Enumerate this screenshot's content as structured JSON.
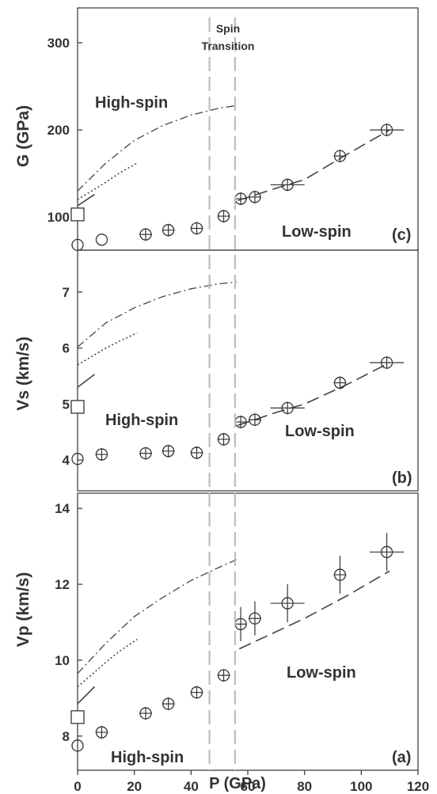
{
  "figure": {
    "spin_label_1": "Spin",
    "spin_label_2": "Transition",
    "xlabel": "P (GPa)",
    "x_ticks": [
      "0",
      "20",
      "40",
      "60",
      "80",
      "100",
      "120"
    ],
    "transition_pressures": [
      46.5,
      55.5
    ]
  },
  "chart_data": [
    {
      "type": "scatter",
      "panel_label": "(c)",
      "ylabel": "G (GPa)",
      "xlim": [
        0,
        120
      ],
      "ylim": [
        62,
        340
      ],
      "y_ticks": [
        100,
        200,
        300
      ],
      "annotations": {
        "high": "High-spin",
        "low": "Low-spin"
      },
      "high_spin_points": {
        "x": [
          0,
          8.5,
          24,
          32,
          42,
          51.5
        ],
        "y": [
          68,
          74,
          80,
          85,
          87,
          101
        ],
        "xerr": [
          0,
          0,
          0.8,
          0.8,
          0.8,
          0.8
        ],
        "yerr": [
          0,
          0,
          3,
          3,
          3,
          3
        ]
      },
      "low_spin_points": {
        "x": [
          57.5,
          62.5,
          74,
          92.5,
          109
        ],
        "y": [
          121,
          123,
          137,
          170,
          200
        ],
        "xerr": [
          2,
          2,
          6,
          2,
          6
        ],
        "yerr": [
          5,
          5,
          7,
          7,
          7
        ]
      },
      "reference_point": {
        "x": 0,
        "y": 103
      },
      "curves": {
        "dashdot": {
          "x": [
            0,
            10,
            20,
            30,
            40,
            50,
            56
          ],
          "y": [
            130,
            162,
            188,
            205,
            217,
            225,
            228
          ]
        },
        "dotted": {
          "x": [
            0,
            5,
            10,
            15,
            21
          ],
          "y": [
            120,
            130,
            140,
            151,
            162
          ]
        },
        "short_dash": {
          "x": [
            0,
            6
          ],
          "y": [
            113,
            126
          ]
        },
        "low_dash": {
          "x": [
            56.5,
            70,
            80,
            95,
            110
          ],
          "y": [
            119,
            133,
            143,
            172,
            200
          ]
        }
      }
    },
    {
      "type": "scatter",
      "panel_label": "(b)",
      "ylabel": "Vs (km/s)",
      "xlim": [
        0,
        120
      ],
      "ylim": [
        3.45,
        7.75
      ],
      "y_ticks": [
        4,
        5,
        6,
        7
      ],
      "annotations": {
        "high": "High-spin",
        "low": "Low-spin"
      },
      "high_spin_points": {
        "x": [
          0,
          8.5,
          24,
          32,
          42,
          51.5
        ],
        "y": [
          4.02,
          4.1,
          4.12,
          4.16,
          4.13,
          4.37
        ],
        "xerr": [
          0,
          0.8,
          0.8,
          0.8,
          0.8,
          0.8
        ],
        "yerr": [
          0,
          0.04,
          0.05,
          0.04,
          0.04,
          0.04
        ]
      },
      "low_spin_points": {
        "x": [
          57.5,
          62.5,
          74,
          92.5,
          109
        ],
        "y": [
          4.68,
          4.72,
          4.93,
          5.38,
          5.74
        ],
        "xerr": [
          2,
          2,
          6,
          2,
          6
        ],
        "yerr": [
          0.07,
          0.07,
          0.07,
          0.07,
          0.07
        ]
      },
      "reference_point": {
        "x": 0,
        "y": 4.95
      },
      "curves": {
        "dashdot": {
          "x": [
            0,
            10,
            20,
            30,
            40,
            50,
            56
          ],
          "y": [
            6.02,
            6.45,
            6.72,
            6.92,
            7.06,
            7.15,
            7.18
          ]
        },
        "dotted": {
          "x": [
            0,
            5,
            10,
            15,
            21
          ],
          "y": [
            5.7,
            5.85,
            6.0,
            6.13,
            6.27
          ]
        },
        "short_dash": {
          "x": [
            0,
            6
          ],
          "y": [
            5.3,
            5.53
          ]
        },
        "low_dash": {
          "x": [
            56.5,
            70,
            80,
            95,
            110
          ],
          "y": [
            4.62,
            4.85,
            5.0,
            5.35,
            5.74
          ]
        }
      }
    },
    {
      "type": "scatter",
      "panel_label": "(a)",
      "ylabel": "Vp (km/s)",
      "xlim": [
        0,
        120
      ],
      "ylim": [
        7.1,
        14.4
      ],
      "y_ticks": [
        8,
        10,
        12,
        14
      ],
      "annotations": {
        "high": "High-spin",
        "low": "Low-spin"
      },
      "high_spin_points": {
        "x": [
          0,
          8.5,
          24,
          32,
          42,
          51.5
        ],
        "y": [
          7.75,
          8.1,
          8.6,
          8.85,
          9.15,
          9.6
        ],
        "xerr": [
          0,
          0.8,
          0.8,
          0.8,
          0.8,
          0.8
        ],
        "yerr": [
          0,
          0.06,
          0.12,
          0.12,
          0.12,
          0.12
        ]
      },
      "low_spin_points": {
        "x": [
          57.5,
          62.5,
          74,
          92.5,
          109
        ],
        "y": [
          10.95,
          11.1,
          11.5,
          12.25,
          12.85
        ],
        "xerr": [
          2,
          2,
          6,
          2,
          6
        ],
        "yerr": [
          0.45,
          0.45,
          0.5,
          0.5,
          0.5
        ]
      },
      "reference_point": {
        "x": 0,
        "y": 8.5
      },
      "curves": {
        "dashdot": {
          "x": [
            0,
            10,
            20,
            30,
            40,
            50,
            56
          ],
          "y": [
            9.65,
            10.45,
            11.15,
            11.65,
            12.1,
            12.45,
            12.65
          ]
        },
        "dotted": {
          "x": [
            0,
            5,
            10,
            15,
            21
          ],
          "y": [
            9.3,
            9.62,
            9.95,
            10.25,
            10.55
          ]
        },
        "short_dash": {
          "x": [
            0,
            6
          ],
          "y": [
            8.85,
            9.3
          ]
        },
        "low_dash": {
          "x": [
            57,
            70,
            80,
            95,
            110
          ],
          "y": [
            10.3,
            10.75,
            11.1,
            11.7,
            12.35
          ]
        }
      }
    }
  ]
}
